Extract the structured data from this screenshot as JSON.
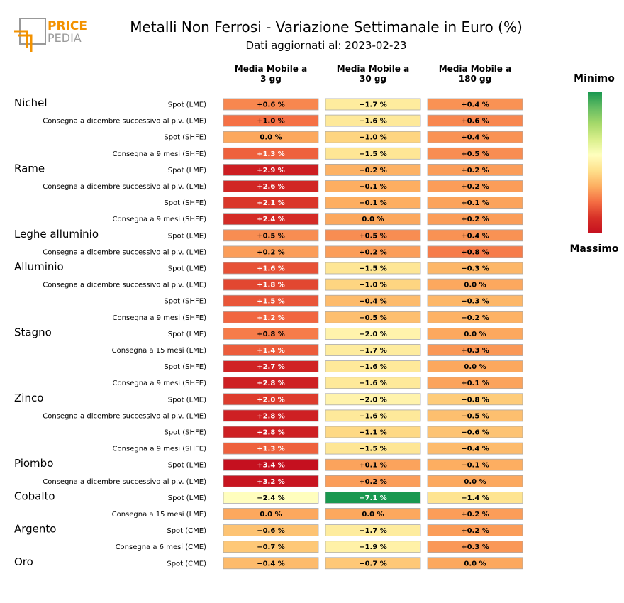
{
  "logo": {
    "line1": "PRICE",
    "line2": "PEDIA"
  },
  "title": "Metalli Non Ferrosi - Variazione Settimanale in Euro (%)",
  "subtitle": "Dati aggiornati al: 2023-02-23",
  "legend": {
    "min_label": "Minimo",
    "max_label": "Massimo",
    "colors": [
      "#1a9850",
      "#66bd63",
      "#a6d96a",
      "#d9ef8b",
      "#ffffbf",
      "#fee08b",
      "#fdae61",
      "#f46d43",
      "#d73027",
      "#c5101f"
    ]
  },
  "chart_data": {
    "type": "table",
    "columns": [
      "Media Mobile a\n3 gg",
      "Media Mobile a\n30 gg",
      "Media Mobile a\n180 gg"
    ],
    "groups": [
      {
        "name": "Nichel",
        "rows": [
          {
            "label": "Spot (LME)",
            "values": [
              0.6,
              -1.7,
              0.4
            ]
          },
          {
            "label": "Consegna a dicembre successivo al p.v. (LME)",
            "values": [
              1.0,
              -1.6,
              0.6
            ]
          },
          {
            "label": "Spot (SHFE)",
            "values": [
              0.0,
              -1.0,
              0.4
            ]
          },
          {
            "label": "Consegna a 9 mesi (SHFE)",
            "values": [
              1.3,
              -1.5,
              0.5
            ]
          }
        ]
      },
      {
        "name": "Rame",
        "rows": [
          {
            "label": "Spot (LME)",
            "values": [
              2.9,
              -0.2,
              0.2
            ]
          },
          {
            "label": "Consegna a dicembre successivo al p.v. (LME)",
            "values": [
              2.6,
              -0.1,
              0.2
            ]
          },
          {
            "label": "Spot (SHFE)",
            "values": [
              2.1,
              -0.1,
              0.1
            ]
          },
          {
            "label": "Consegna a 9 mesi (SHFE)",
            "values": [
              2.4,
              0.0,
              0.2
            ]
          }
        ]
      },
      {
        "name": "Leghe alluminio",
        "rows": [
          {
            "label": "Spot (LME)",
            "values": [
              0.5,
              0.5,
              0.4
            ]
          },
          {
            "label": "Consegna a dicembre successivo al p.v. (LME)",
            "values": [
              0.2,
              0.2,
              0.8
            ]
          }
        ]
      },
      {
        "name": "Alluminio",
        "rows": [
          {
            "label": "Spot (LME)",
            "values": [
              1.6,
              -1.5,
              -0.3
            ]
          },
          {
            "label": "Consegna a dicembre successivo al p.v. (LME)",
            "values": [
              1.8,
              -1.0,
              0.0
            ]
          },
          {
            "label": "Spot (SHFE)",
            "values": [
              1.5,
              -0.4,
              -0.3
            ]
          },
          {
            "label": "Consegna a 9 mesi (SHFE)",
            "values": [
              1.2,
              -0.5,
              -0.2
            ]
          }
        ]
      },
      {
        "name": "Stagno",
        "rows": [
          {
            "label": "Spot (LME)",
            "values": [
              0.8,
              -2.0,
              0.0
            ]
          },
          {
            "label": "Consegna a 15 mesi (LME)",
            "values": [
              1.4,
              -1.7,
              0.3
            ]
          },
          {
            "label": "Spot (SHFE)",
            "values": [
              2.7,
              -1.6,
              0.0
            ]
          },
          {
            "label": "Consegna a 9 mesi (SHFE)",
            "values": [
              2.8,
              -1.6,
              0.1
            ]
          }
        ]
      },
      {
        "name": "Zinco",
        "rows": [
          {
            "label": "Spot (LME)",
            "values": [
              2.0,
              -2.0,
              -0.8
            ]
          },
          {
            "label": "Consegna a dicembre successivo al p.v. (LME)",
            "values": [
              2.8,
              -1.6,
              -0.5
            ]
          },
          {
            "label": "Spot (SHFE)",
            "values": [
              2.8,
              -1.1,
              -0.6
            ]
          },
          {
            "label": "Consegna a 9 mesi (SHFE)",
            "values": [
              1.3,
              -1.5,
              -0.4
            ]
          }
        ]
      },
      {
        "name": "Piombo",
        "rows": [
          {
            "label": "Spot (LME)",
            "values": [
              3.4,
              0.1,
              -0.1
            ]
          },
          {
            "label": "Consegna a dicembre successivo al p.v. (LME)",
            "values": [
              3.2,
              0.2,
              0.0
            ]
          }
        ]
      },
      {
        "name": "Cobalto",
        "rows": [
          {
            "label": "Spot (LME)",
            "values": [
              -2.4,
              -7.1,
              -1.4
            ]
          },
          {
            "label": "Consegna a 15 mesi (LME)",
            "values": [
              0.0,
              0.0,
              0.2
            ]
          }
        ]
      },
      {
        "name": "Argento",
        "rows": [
          {
            "label": "Spot (CME)",
            "values": [
              -0.6,
              -1.7,
              0.2
            ]
          },
          {
            "label": "Consegna a 6 mesi (CME)",
            "values": [
              -0.7,
              -1.9,
              0.3
            ]
          }
        ]
      },
      {
        "name": "Oro",
        "rows": [
          {
            "label": "Spot (CME)",
            "values": [
              -0.4,
              -0.7,
              0.0
            ]
          }
        ]
      }
    ],
    "color_scale": {
      "min": -7.1,
      "max": 3.4
    }
  }
}
